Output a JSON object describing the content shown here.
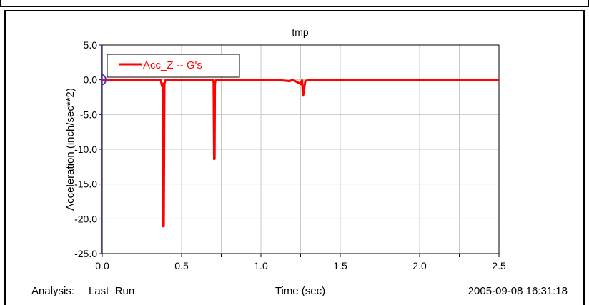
{
  "chart_data": {
    "type": "line",
    "title": "tmp",
    "xlabel": "Time (sec)",
    "ylabel": "Acceleration (inch/sec**2)",
    "xlim": [
      0.0,
      2.5
    ],
    "ylim": [
      -25.0,
      5.0
    ],
    "xticks": [
      0.0,
      0.25,
      0.5,
      0.75,
      1.0,
      1.25,
      1.5,
      1.75,
      2.0,
      2.25,
      2.5
    ],
    "xtick_labels": [
      "0.0",
      "",
      "0.5",
      "",
      "1.0",
      "",
      "1.5",
      "",
      "2.0",
      "",
      "2.5"
    ],
    "yticks": [
      5.0,
      0.0,
      -5.0,
      -10.0,
      -15.0,
      -20.0,
      -25.0
    ],
    "ytick_labels": [
      "5.0",
      "0.0",
      "-5.0",
      "-10.0",
      "-15.0",
      "-20.0",
      "-25.0"
    ],
    "grid": true,
    "legend_position": "top-left",
    "series": [
      {
        "name": "Acc_Z -- G's",
        "color": "#ff0000",
        "x": [
          0.0,
          0.37,
          0.372,
          0.378,
          0.382,
          0.385,
          0.388,
          0.392,
          0.395,
          0.4,
          0.7,
          0.702,
          0.705,
          0.708,
          0.71,
          0.712,
          0.715,
          0.72,
          1.0,
          1.1,
          1.18,
          1.2,
          1.25,
          1.26,
          1.265,
          1.27,
          1.275,
          1.28,
          1.3,
          2.5
        ],
        "y": [
          0.0,
          0.0,
          -0.4,
          -1.0,
          -0.4,
          -21.2,
          -21.0,
          -0.6,
          -0.3,
          0.0,
          0.0,
          -0.5,
          -11.5,
          -11.3,
          -0.8,
          -0.3,
          -0.1,
          0.0,
          0.0,
          0.0,
          -0.2,
          0.0,
          -0.6,
          0.0,
          -2.4,
          -1.8,
          -0.8,
          -0.2,
          0.0,
          0.0
        ]
      }
    ]
  },
  "footer": {
    "analysis_label": "Analysis:",
    "analysis_value": "Last_Run",
    "timestamp": "2005-09-08 16:31:18"
  }
}
